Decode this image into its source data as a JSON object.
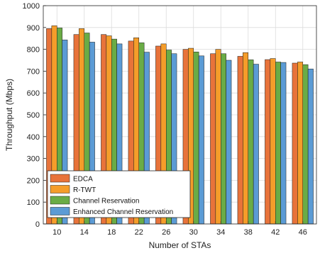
{
  "chart_data": {
    "type": "bar",
    "xlabel": "Number of STAs",
    "ylabel": "Throughput (Mbps)",
    "ylim": [
      0,
      1000
    ],
    "yticks": [
      0,
      100,
      200,
      300,
      400,
      500,
      600,
      700,
      800,
      900,
      1000
    ],
    "grid": true,
    "legend_position": "bottom-left",
    "categories": [
      "10",
      "14",
      "18",
      "22",
      "26",
      "30",
      "34",
      "38",
      "42",
      "46"
    ],
    "series": [
      {
        "name": "EDCA",
        "color": "#e8733a",
        "values": [
          895,
          868,
          868,
          838,
          815,
          800,
          780,
          768,
          753,
          737
        ]
      },
      {
        "name": "R-TWT",
        "color": "#f59d2a",
        "values": [
          908,
          895,
          862,
          853,
          825,
          805,
          800,
          785,
          758,
          742
        ]
      },
      {
        "name": "Channel Reservation",
        "color": "#6aac46",
        "values": [
          898,
          875,
          847,
          830,
          797,
          788,
          780,
          752,
          742,
          730
        ]
      },
      {
        "name": "Enhanced Channel Reservation",
        "color": "#5b9bd5",
        "values": [
          843,
          833,
          825,
          787,
          780,
          770,
          750,
          732,
          740,
          710
        ]
      }
    ]
  }
}
